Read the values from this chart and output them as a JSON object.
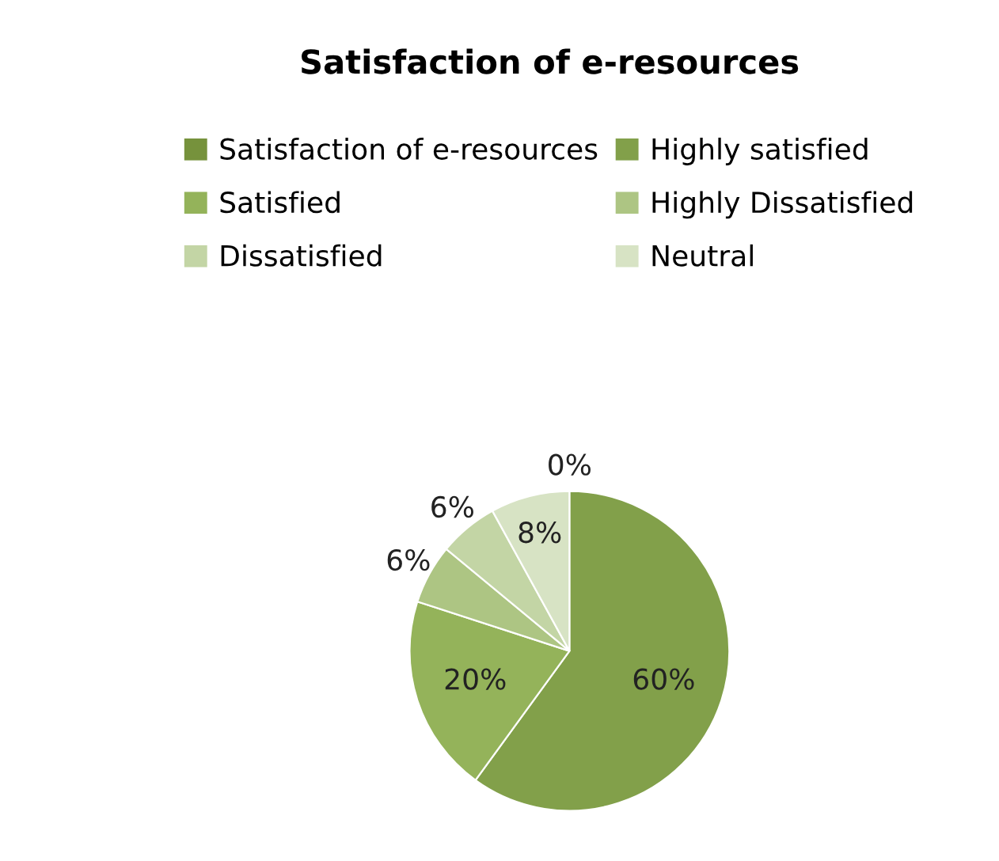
{
  "chart_data": {
    "type": "pie",
    "title": "Satisfaction of e-resources",
    "categories": [
      "Satisfaction of e-resources",
      "Highly satisfied",
      "Satisfied",
      "Highly Dissatisfied",
      "Dissatisfied",
      "Neutral"
    ],
    "values": [
      0,
      60,
      20,
      6,
      6,
      8
    ],
    "colors": [
      "#76923c",
      "#82a04a",
      "#94b35a",
      "#adc583",
      "#c3d5a5",
      "#d7e3c4"
    ],
    "value_labels": [
      "0%",
      "60%",
      "20%",
      "6%",
      "6%",
      "8%"
    ],
    "legend": "top"
  }
}
